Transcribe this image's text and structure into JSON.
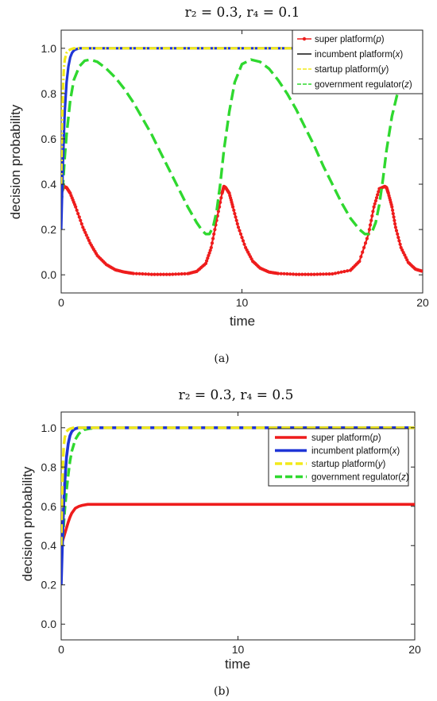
{
  "colors": {
    "super": "#ee1c1c",
    "incumbent": "#1f35d6",
    "startup": "#f2ea1a",
    "government": "#2fd82f",
    "incumbent_legend_a": "#111111"
  },
  "chart_data": [
    {
      "type": "line",
      "panel": "a",
      "title": "r₂ = 0.3, r₄ = 0.1",
      "caption": "(a)",
      "xlabel": "time",
      "ylabel": "decision probability",
      "xlim": [
        0,
        20
      ],
      "ylim": [
        -0.08,
        1.08
      ],
      "xticks": [
        0,
        10,
        20
      ],
      "yticks": [
        0.0,
        0.2,
        0.4,
        0.6,
        0.8,
        1.0
      ],
      "xtick_labels": [
        "0",
        "10",
        "20"
      ],
      "ytick_labels": [
        "0.0",
        "0.2",
        "0.4",
        "0.6",
        "0.8",
        "1.0"
      ],
      "grid": false,
      "legend_position": "top-right",
      "series": [
        {
          "key": "super",
          "name": "super platform(p)",
          "label": "super platform(",
          "var": "p",
          "style": "marker-line",
          "x": [
            0,
            0.15,
            0.3,
            0.5,
            0.8,
            1.2,
            1.6,
            2.0,
            2.5,
            3.0,
            3.5,
            4.0,
            5.0,
            6.0,
            7.0,
            7.5,
            8.0,
            8.3,
            8.6,
            8.9,
            9.0,
            9.1,
            9.3,
            9.5,
            9.8,
            10.2,
            10.6,
            11.0,
            11.5,
            12.0,
            13.0,
            14.0,
            15.0,
            16.0,
            16.5,
            17.0,
            17.3,
            17.6,
            17.9,
            18.0,
            18.1,
            18.3,
            18.5,
            18.8,
            19.2,
            19.6,
            20.0
          ],
          "y": [
            0.36,
            0.39,
            0.385,
            0.36,
            0.3,
            0.21,
            0.14,
            0.085,
            0.045,
            0.022,
            0.012,
            0.006,
            0.002,
            0.002,
            0.005,
            0.015,
            0.05,
            0.12,
            0.24,
            0.36,
            0.39,
            0.385,
            0.36,
            0.3,
            0.21,
            0.12,
            0.06,
            0.03,
            0.012,
            0.006,
            0.002,
            0.002,
            0.004,
            0.02,
            0.06,
            0.18,
            0.3,
            0.38,
            0.39,
            0.385,
            0.36,
            0.3,
            0.21,
            0.12,
            0.055,
            0.025,
            0.015
          ]
        },
        {
          "key": "incumbent",
          "name": "incumbent platform(x)",
          "label": "incumbent platform(",
          "var": "x",
          "style": "solid",
          "legend_color": "incumbent_legend_a",
          "x": [
            0,
            0.05,
            0.1,
            0.15,
            0.2,
            0.3,
            0.4,
            0.5,
            0.6,
            0.7,
            0.8,
            1.0,
            20
          ],
          "y": [
            0.2,
            0.35,
            0.5,
            0.62,
            0.72,
            0.85,
            0.92,
            0.96,
            0.98,
            0.99,
            0.995,
            1.0,
            1.0
          ]
        },
        {
          "key": "startup",
          "name": "startup platform(y)",
          "label": "startup platform(",
          "var": "y",
          "style": "dashdot",
          "x": [
            0,
            0.05,
            0.1,
            0.15,
            0.2,
            0.3,
            0.4,
            0.5,
            0.7,
            20
          ],
          "y": [
            0.4,
            0.65,
            0.82,
            0.91,
            0.95,
            0.98,
            0.99,
            0.995,
            1.0,
            1.0
          ]
        },
        {
          "key": "government",
          "name": "government regulator(z)",
          "label": "government regulator(",
          "var": "z",
          "style": "dashed",
          "x": [
            0,
            0.1,
            0.2,
            0.3,
            0.5,
            0.7,
            1.0,
            1.3,
            1.6,
            2.0,
            2.5,
            3.0,
            3.5,
            4.0,
            4.5,
            5.0,
            5.5,
            6.0,
            6.5,
            7.0,
            7.5,
            7.8,
            8.0,
            8.2,
            8.4,
            8.6,
            8.8,
            9.0,
            9.3,
            9.6,
            10.0,
            10.5,
            11.0,
            11.5,
            12.0,
            12.5,
            13.0,
            13.5,
            14.0,
            14.5,
            15.0,
            15.5,
            16.0,
            16.5,
            16.8,
            17.0,
            17.2,
            17.4,
            17.6,
            17.8,
            18.0,
            18.3,
            18.6,
            18.9,
            19.2,
            19.5,
            19.8,
            20.0
          ],
          "y": [
            0.3,
            0.4,
            0.52,
            0.62,
            0.77,
            0.86,
            0.92,
            0.945,
            0.95,
            0.94,
            0.91,
            0.87,
            0.82,
            0.76,
            0.69,
            0.62,
            0.54,
            0.46,
            0.38,
            0.3,
            0.23,
            0.195,
            0.18,
            0.18,
            0.21,
            0.28,
            0.4,
            0.55,
            0.72,
            0.85,
            0.93,
            0.95,
            0.94,
            0.91,
            0.86,
            0.8,
            0.73,
            0.65,
            0.57,
            0.48,
            0.4,
            0.32,
            0.25,
            0.2,
            0.18,
            0.18,
            0.19,
            0.23,
            0.31,
            0.42,
            0.55,
            0.7,
            0.8,
            0.88,
            0.93,
            0.95,
            0.945,
            0.94
          ]
        }
      ]
    },
    {
      "type": "line",
      "panel": "b",
      "title": "r₂ = 0.3, r₄ = 0.5",
      "caption": "(b)",
      "xlabel": "time",
      "ylabel": "decision probability",
      "xlim": [
        0,
        20
      ],
      "ylim": [
        -0.08,
        1.08
      ],
      "xticks": [
        0,
        10,
        20
      ],
      "yticks": [
        0.0,
        0.2,
        0.4,
        0.6,
        0.8,
        1.0
      ],
      "xtick_labels": [
        "0",
        "10",
        "20"
      ],
      "ytick_labels": [
        "0.0",
        "0.2",
        "0.4",
        "0.6",
        "0.8",
        "1.0"
      ],
      "grid": false,
      "legend_position": "top-right",
      "series": [
        {
          "key": "super",
          "name": "super platform(p)",
          "label": "super platform(",
          "var": "p",
          "style": "solid-thick",
          "x": [
            0,
            0.1,
            0.2,
            0.3,
            0.4,
            0.5,
            0.6,
            0.8,
            1.0,
            1.2,
            1.5,
            2.0,
            20
          ],
          "y": [
            0.4,
            0.43,
            0.46,
            0.49,
            0.52,
            0.545,
            0.565,
            0.59,
            0.6,
            0.605,
            0.61,
            0.61,
            0.61
          ]
        },
        {
          "key": "incumbent",
          "name": "incumbent platform(x)",
          "label": "incumbent platform(",
          "var": "x",
          "style": "solid-thick",
          "x": [
            0,
            0.05,
            0.1,
            0.15,
            0.2,
            0.3,
            0.4,
            0.5,
            0.6,
            0.7,
            0.8,
            1.0,
            20
          ],
          "y": [
            0.2,
            0.35,
            0.5,
            0.62,
            0.72,
            0.85,
            0.92,
            0.96,
            0.98,
            0.99,
            0.995,
            1.0,
            1.0
          ]
        },
        {
          "key": "startup",
          "name": "startup platform(y)",
          "label": "startup platform(",
          "var": "y",
          "style": "dashed",
          "x": [
            0,
            0.05,
            0.1,
            0.15,
            0.2,
            0.3,
            0.4,
            0.5,
            0.7,
            20
          ],
          "y": [
            0.4,
            0.65,
            0.82,
            0.91,
            0.95,
            0.98,
            0.99,
            0.995,
            1.0,
            1.0
          ]
        },
        {
          "key": "government",
          "name": "government regulator(z)",
          "label": "government regulator(",
          "var": "z",
          "style": "dashed",
          "x": [
            0,
            0.1,
            0.2,
            0.3,
            0.4,
            0.5,
            0.6,
            0.8,
            1.0,
            1.3,
            1.6,
            2.0,
            20
          ],
          "y": [
            0.3,
            0.45,
            0.58,
            0.68,
            0.76,
            0.83,
            0.88,
            0.94,
            0.97,
            0.99,
            0.995,
            1.0,
            1.0
          ]
        }
      ]
    }
  ]
}
